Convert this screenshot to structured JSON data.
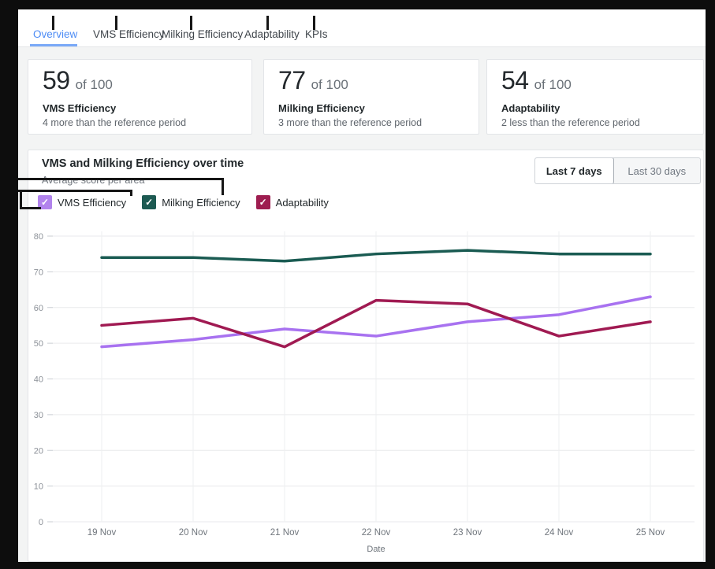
{
  "tabs": {
    "items": [
      {
        "label": "Overview",
        "active": true
      },
      {
        "label": "VMS Efficiency",
        "active": false
      },
      {
        "label": "Milking Efficiency",
        "active": false
      },
      {
        "label": "Adaptability",
        "active": false
      },
      {
        "label": "KPIs",
        "active": false
      }
    ]
  },
  "cards": [
    {
      "value": "59",
      "suffix": "of 100",
      "title": "VMS Efficiency",
      "caption": "4 more than the reference period"
    },
    {
      "value": "77",
      "suffix": "of 100",
      "title": "Milking Efficiency",
      "caption": "3 more than the reference period"
    },
    {
      "value": "54",
      "suffix": "of 100",
      "title": "Adaptability",
      "caption": "2 less than the reference period"
    }
  ],
  "chart_header": {
    "title": "VMS and Milking Efficiency over time",
    "subtitle": "Average score per area",
    "range_buttons": [
      {
        "label": "Last 7 days",
        "selected": true
      },
      {
        "label": "Last 30 days",
        "selected": false
      }
    ]
  },
  "legend": {
    "items": [
      {
        "label": "VMS Efficiency",
        "color": "#b183ec",
        "checked": true
      },
      {
        "label": "Milking Efficiency",
        "color": "#1d5a52",
        "checked": true
      },
      {
        "label": "Adaptability",
        "color": "#9e1d50",
        "checked": true
      }
    ]
  },
  "chart_data": {
    "type": "line",
    "title": "VMS and Milking Efficiency over time",
    "subtitle": "Average score per area",
    "x": [
      "19 Nov",
      "20 Nov",
      "21 Nov",
      "22 Nov",
      "23 Nov",
      "24 Nov",
      "25 Nov"
    ],
    "series": [
      {
        "name": "VMS Efficiency",
        "color": "#a872f0",
        "values": [
          49,
          51,
          54,
          52,
          56,
          58,
          63
        ]
      },
      {
        "name": "Milking Efficiency",
        "color": "#1a5b52",
        "values": [
          74,
          74,
          73,
          75,
          76,
          75,
          75
        ]
      },
      {
        "name": "Adaptability",
        "color": "#a01a52",
        "values": [
          55,
          57,
          49,
          62,
          61,
          52,
          56
        ]
      }
    ],
    "xlabel": "Date",
    "ylabel": "",
    "ylim": [
      0,
      80
    ],
    "ytick_step": 10,
    "grid": true,
    "legend_position": "top-left"
  },
  "colors": {
    "accent_blue": "#4d8cf5",
    "annotation_black": "#161616"
  }
}
